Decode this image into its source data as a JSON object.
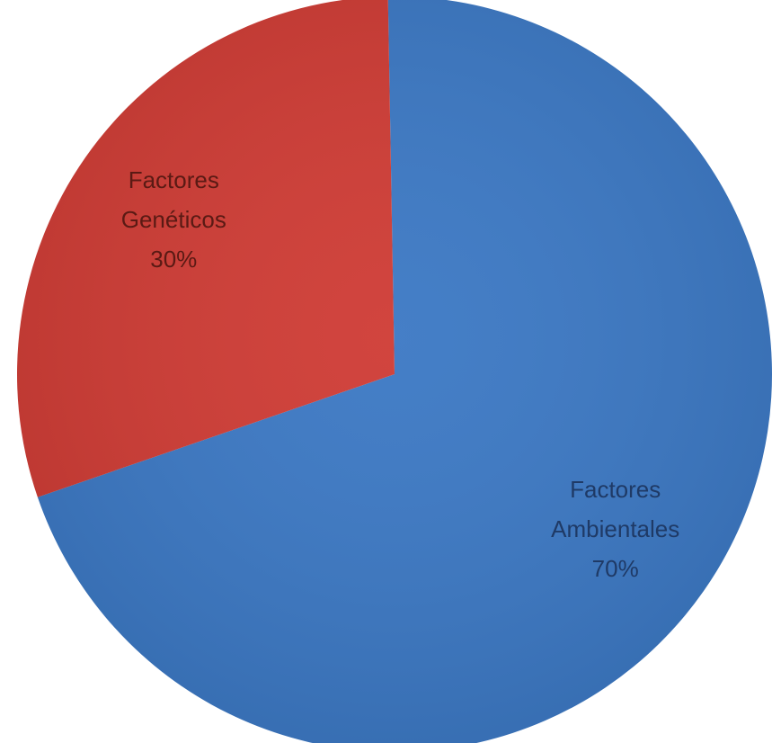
{
  "chart_data": {
    "type": "pie",
    "title": "",
    "start_angle_deg": -1,
    "direction": "clockwise",
    "slices": [
      {
        "label_lines": [
          "Factores",
          "Ambientales",
          "70%"
        ],
        "value": 70,
        "color": "#3b78c4",
        "label_color": "#1f3a66"
      },
      {
        "label_lines": [
          "Factores",
          "Genéticos",
          "30%"
        ],
        "value": 30,
        "color": "#cf3b34",
        "label_color": "#5a1a14"
      }
    ]
  }
}
